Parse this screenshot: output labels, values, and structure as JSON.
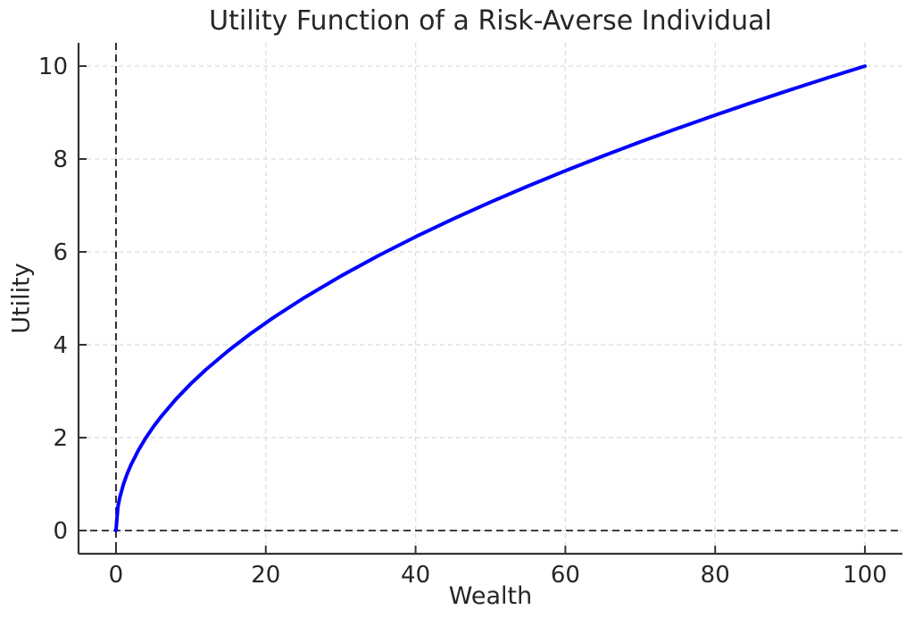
{
  "chart_data": {
    "type": "line",
    "title": "Utility Function of a Risk-Averse Individual",
    "xlabel": "Wealth",
    "ylabel": "Utility",
    "xlim": [
      -5,
      105
    ],
    "ylim": [
      -0.5,
      10.5
    ],
    "xticks": [
      0,
      20,
      40,
      60,
      80,
      100
    ],
    "yticks": [
      0,
      2,
      4,
      6,
      8,
      10
    ],
    "grid": true,
    "grid_style": "dashed",
    "grid_color": "#dcdcdc",
    "spine_color": "#333333",
    "text_color": "#262626",
    "legend": null,
    "series": [
      {
        "color": "#0000ff",
        "line_width": 4,
        "x": [
          0,
          0.25,
          0.5,
          1,
          1.5,
          2,
          3,
          4,
          5,
          6,
          8,
          10,
          12,
          15,
          18,
          21,
          25,
          30,
          35,
          40,
          45,
          50,
          55,
          60,
          65,
          70,
          75,
          80,
          85,
          90,
          95,
          100
        ],
        "y": [
          0,
          0.5,
          0.707,
          1,
          1.225,
          1.414,
          1.732,
          2,
          2.236,
          2.449,
          2.828,
          3.162,
          3.464,
          3.873,
          4.243,
          4.583,
          5,
          5.477,
          5.916,
          6.325,
          6.708,
          7.071,
          7.416,
          7.746,
          8.062,
          8.367,
          8.66,
          8.944,
          9.22,
          9.487,
          9.747,
          10
        ]
      }
    ],
    "reference_lines": [
      {
        "orientation": "horizontal",
        "value": 0,
        "color": "#000000",
        "style": "dashed"
      },
      {
        "orientation": "vertical",
        "value": 0,
        "color": "#000000",
        "style": "dashed"
      }
    ]
  }
}
